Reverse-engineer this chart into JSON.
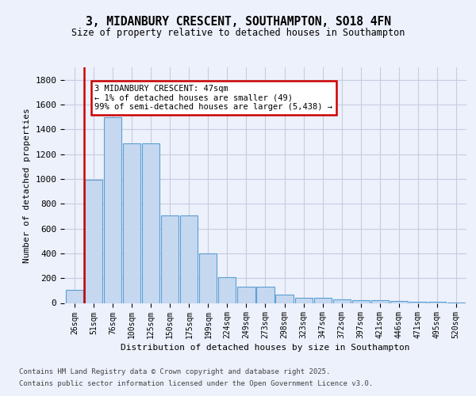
{
  "title_line1": "3, MIDANBURY CRESCENT, SOUTHAMPTON, SO18 4FN",
  "title_line2": "Size of property relative to detached houses in Southampton",
  "xlabel": "Distribution of detached houses by size in Southampton",
  "ylabel": "Number of detached properties",
  "categories": [
    "26sqm",
    "51sqm",
    "76sqm",
    "100sqm",
    "125sqm",
    "150sqm",
    "175sqm",
    "199sqm",
    "224sqm",
    "249sqm",
    "273sqm",
    "298sqm",
    "323sqm",
    "347sqm",
    "372sqm",
    "397sqm",
    "421sqm",
    "446sqm",
    "471sqm",
    "495sqm",
    "520sqm"
  ],
  "values": [
    105,
    995,
    1500,
    1290,
    1290,
    705,
    705,
    400,
    210,
    130,
    130,
    70,
    40,
    40,
    30,
    20,
    20,
    15,
    12,
    10,
    5
  ],
  "bar_color": "#c5d8f0",
  "bar_edge_color": "#5a9fd4",
  "vline_color": "#cc0000",
  "vline_x": 0.5,
  "annotation_text": "3 MIDANBURY CRESCENT: 47sqm\n← 1% of detached houses are smaller (49)\n99% of semi-detached houses are larger (5,438) →",
  "annotation_box_edgecolor": "#cc0000",
  "ylim": [
    0,
    1900
  ],
  "yticks": [
    0,
    200,
    400,
    600,
    800,
    1000,
    1200,
    1400,
    1600,
    1800
  ],
  "bg_color": "#edf1fc",
  "grid_color": "#c8cce0",
  "footer_line1": "Contains HM Land Registry data © Crown copyright and database right 2025.",
  "footer_line2": "Contains public sector information licensed under the Open Government Licence v3.0."
}
